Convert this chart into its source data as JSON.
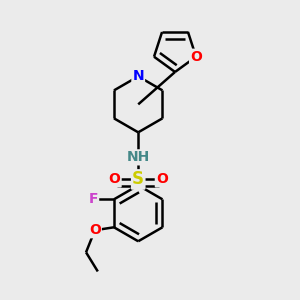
{
  "background_color": "#ebebeb",
  "atom_colors": {
    "O": "#ff0000",
    "N": "#0000ff",
    "S": "#cccc00",
    "F": "#cc44cc",
    "NH": "#448888",
    "C": "#000000"
  },
  "bond_color": "#000000",
  "bond_width": 1.8,
  "font_size_atoms": 11
}
